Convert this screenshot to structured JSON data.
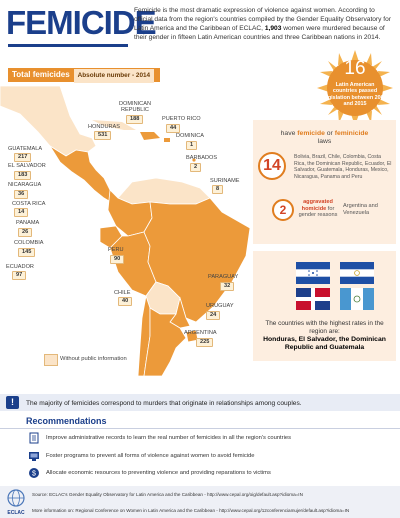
{
  "header": {
    "title": "FEMICIDE",
    "intro_pre": "Femicide is the most dramatic expression of violence against women. According to official data from the region's countries compiled by the Gender Equality Observatory for Latin America and the Caribbean of ECLAC, ",
    "intro_bold": "1,903",
    "intro_post": " women were murdered because of their gender in fifteen Latin American countries and three Caribbean nations in 2014."
  },
  "map_panel": {
    "badge_title": "Total femicides",
    "badge_sub": "Absolute number - 2014",
    "legend": "Without public information"
  },
  "countries": [
    {
      "name": "DOMINICAN\nREPUBLIC",
      "value": "188"
    },
    {
      "name": "PUERTO RICO",
      "value": "44"
    },
    {
      "name": "HONDURAS",
      "value": "531"
    },
    {
      "name": "DOMINICA",
      "value": "1"
    },
    {
      "name": "GUATEMALA",
      "value": "217"
    },
    {
      "name": "BARBADOS",
      "value": "2"
    },
    {
      "name": "EL SALVADOR",
      "value": "183"
    },
    {
      "name": "SURINAME",
      "value": "8"
    },
    {
      "name": "NICARAGUA",
      "value": "36"
    },
    {
      "name": "COSTA RICA",
      "value": "14"
    },
    {
      "name": "PANAMA",
      "value": "26"
    },
    {
      "name": "COLOMBIA",
      "value": "145"
    },
    {
      "name": "PERU",
      "value": "90"
    },
    {
      "name": "ECUADOR",
      "value": "97"
    },
    {
      "name": "PARAGUAY",
      "value": "32"
    },
    {
      "name": "CHILE",
      "value": "40"
    },
    {
      "name": "URUGUAY",
      "value": "24"
    },
    {
      "name": "ARGENTINA",
      "value": "225"
    }
  ],
  "legislation": {
    "number": "16",
    "text": "Latin American countries passed legislation between 2008 and 2015"
  },
  "laws": {
    "head_pre": "have ",
    "head_b1": "femicide",
    "head_mid": " or ",
    "head_b2": "feminicide",
    "head_post": "laws",
    "count_main": "14",
    "list": "Bolivia, Brazil, Chile, Colombia, Costa Rica, the Dominican Republic, Ecuador, El Salvador, Guatemala, Honduras, Mexico, Nicaragua, Panama and Peru",
    "count_aggr": "2",
    "aggr_b": "aggravated homicide",
    "aggr_post": " for gender reasons",
    "aggr_countries": "Argentina and Venezuela"
  },
  "highest": {
    "caption": "The countries with the highest rates in the region are:",
    "countries": "Honduras, El Salvador, the Dominican Republic and Guatemala"
  },
  "notice": {
    "icon": "warning-icon",
    "text": "The majority of femicides correspond to murders that originate in relationships among couples."
  },
  "recommendations": {
    "title": "Recommendations",
    "items": [
      {
        "icon": "document-icon",
        "text": "Improve administrative records to learn the real number of femicides in all the region's countries"
      },
      {
        "icon": "program-icon",
        "text": "Foster programs to prevent all forms of violence against women to avoid femicide"
      },
      {
        "icon": "resources-icon",
        "text": "Allocate economic resources to preventing violence and providing reparations to victims"
      }
    ]
  },
  "footer": {
    "source": "Source: ECLAC's Gender Equality Observatory for Latin America and the Caribbean - http://www.cepal.org/oig/default.asp?idioma=IN",
    "more": "More information on: Regional Conference on Women in Latin America and the Caribbean - http://www.cepal.org/12conferenciamujer/default.asp?idioma=IN",
    "logo_text": "ECLAC"
  },
  "colors": {
    "primary_blue": "#1b3f8b",
    "orange": "#e8902e",
    "map_orange": "#ec9a3a",
    "no_data": "#fbe4c8"
  }
}
